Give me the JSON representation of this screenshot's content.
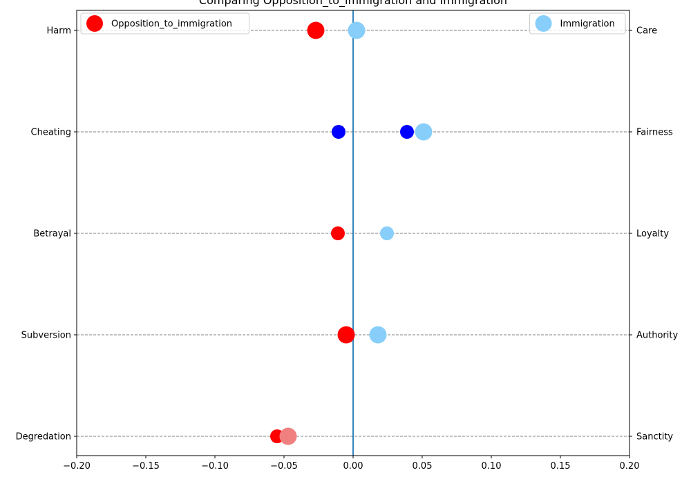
{
  "chart_data": {
    "type": "scatter",
    "title": "Comparing Opposition_to_immigration and Immigration",
    "xlim": [
      -0.2,
      0.2
    ],
    "x_ticks": [
      -0.2,
      -0.15,
      -0.1,
      -0.05,
      0.0,
      0.05,
      0.1,
      0.15,
      0.2
    ],
    "x_tick_labels": [
      "−0.20",
      "−0.15",
      "−0.10",
      "−0.05",
      "0.00",
      "0.05",
      "0.10",
      "0.15",
      "0.20"
    ],
    "left_labels": [
      "Harm",
      "Cheating",
      "Betrayal",
      "Subversion",
      "Degredation"
    ],
    "right_labels": [
      "Care",
      "Fairness",
      "Loyalty",
      "Authority",
      "Sanctity"
    ],
    "grid": "horizontal dashed",
    "vertical_line_at": 0.0,
    "series": [
      {
        "name": "Opposition_to_immigration",
        "color": "#ff0000",
        "legend_placement": "top-left",
        "values": [
          -0.027,
          -0.0105,
          -0.011,
          -0.005,
          -0.055
        ],
        "point_colors": [
          "#ff0000",
          "#0000ff",
          "#ff0000",
          "#ff0000",
          "#ff0000"
        ],
        "point_sizes": [
          "large",
          "small",
          "small",
          "large",
          "small"
        ]
      },
      {
        "name": "Immigration",
        "color": "#87cefa",
        "legend_placement": "top-right",
        "values": [
          0.0025,
          0.051,
          0.0245,
          0.018,
          -0.047
        ],
        "point_colors": [
          "#87cefa",
          "#87cefa",
          "#87cefa",
          "#87cefa",
          "#f08080"
        ],
        "point_sizes": [
          "large",
          "large",
          "small",
          "large",
          "large"
        ]
      }
    ],
    "extra_points": [
      {
        "row": 1,
        "x": 0.039,
        "color": "#0000ff",
        "size": "small"
      }
    ]
  }
}
